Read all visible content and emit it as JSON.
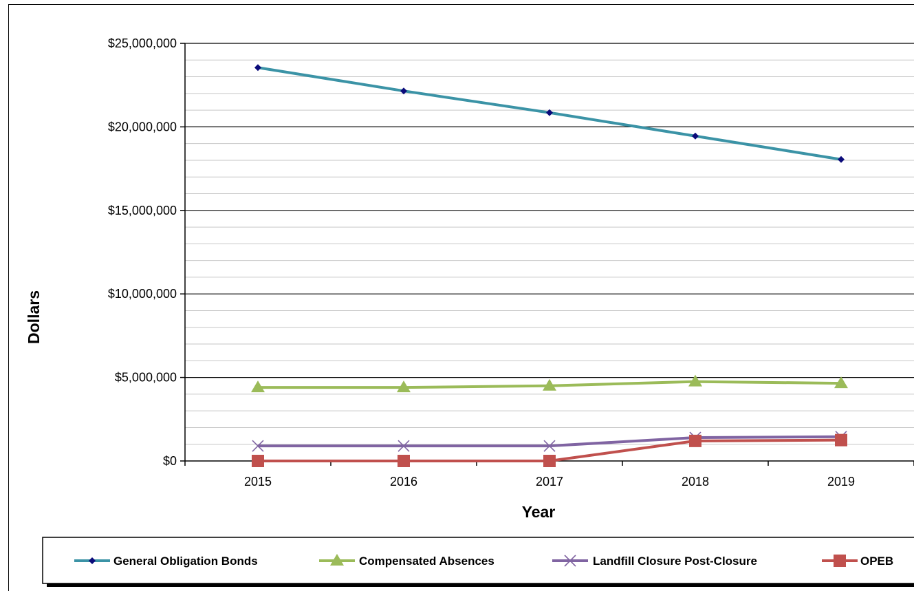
{
  "chart_data": {
    "type": "line",
    "xlabel": "Year",
    "ylabel": "Dollars",
    "categories": [
      "2015",
      "2016",
      "2017",
      "2018",
      "2019"
    ],
    "ylim": [
      0,
      25000000
    ],
    "y_major_step": 5000000,
    "y_minor_step": 1000000,
    "y_tick_labels": [
      "$0",
      "$5,000,000",
      "$10,000,000",
      "$15,000,000",
      "$20,000,000",
      "$25,000,000"
    ],
    "grid": true,
    "legend_position": "bottom",
    "series": [
      {
        "name": "General Obligation Bonds",
        "color": "#3B93A6",
        "marker": "diamond",
        "marker_color": "#0B0B7A",
        "values": [
          23550000,
          22150000,
          20850000,
          19450000,
          18050000
        ]
      },
      {
        "name": "Compensated Absences",
        "color": "#9BBB59",
        "marker": "triangle",
        "marker_color": "#9BBB59",
        "values": [
          4400000,
          4400000,
          4500000,
          4750000,
          4650000
        ]
      },
      {
        "name": "Landfill Closure Post-Closure",
        "color": "#8064A2",
        "marker": "x",
        "marker_color": "#8064A2",
        "values": [
          900000,
          900000,
          900000,
          1400000,
          1450000
        ]
      },
      {
        "name": "OPEB",
        "color": "#C0504D",
        "marker": "square",
        "marker_color": "#C0504D",
        "values": [
          0,
          0,
          0,
          1200000,
          1250000
        ]
      }
    ]
  }
}
